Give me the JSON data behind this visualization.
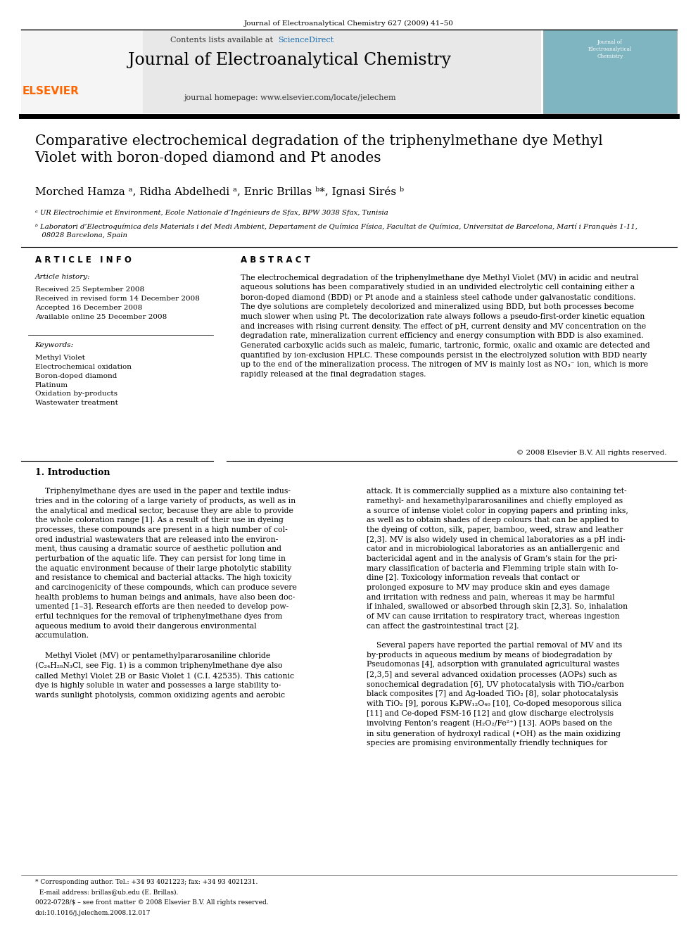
{
  "page_width": 9.92,
  "page_height": 13.23,
  "background": "#ffffff",
  "journal_header": "Journal of Electroanalytical Chemistry 627 (2009) 41–50",
  "sciencedirect_color": "#1a6daf",
  "journal_name": "Journal of Electroanalytical Chemistry",
  "journal_homepage": "journal homepage: www.elsevier.com/locate/jelechem",
  "elsevier_color": "#FF6600",
  "paper_title": "Comparative electrochemical degradation of the triphenylmethane dye Methyl\nViolet with boron-doped diamond and Pt anodes",
  "authors": "Morched Hamza ᵃ, Ridha Abdelhedi ᵃ, Enric Brillas ᵇ*, Ignasi Sirés ᵇ",
  "affil_a": "ᵃ UR Electrochimie et Environment, Ecole Nationale d’Ingénieurs de Sfax, BPW 3038 Sfax, Tunisia",
  "affil_b": "ᵇ Laboratori d’Electroquímica dels Materials i del Medi Ambient, Departament de Química Física, Facultat de Química, Universitat de Barcelona, Martí i Franquès 1-11,\n   08028 Barcelona, Spain",
  "article_info_header": "A R T I C L E   I N F O",
  "article_history_label": "Article history:",
  "article_history": "Received 25 September 2008\nReceived in revised form 14 December 2008\nAccepted 16 December 2008\nAvailable online 25 December 2008",
  "keywords_label": "Keywords:",
  "keywords": "Methyl Violet\nElectrochemical oxidation\nBoron-doped diamond\nPlatinum\nOxidation by-products\nWastewater treatment",
  "abstract_header": "A B S T R A C T",
  "abstract_text": "The electrochemical degradation of the triphenylmethane dye Methyl Violet (MV) in acidic and neutral\naqueous solutions has been comparatively studied in an undivided electrolytic cell containing either a\nboron-doped diamond (BDD) or Pt anode and a stainless steel cathode under galvanostatic conditions.\nThe dye solutions are completely decolorized and mineralized using BDD, but both processes become\nmuch slower when using Pt. The decolorization rate always follows a pseudo-first-order kinetic equation\nand increases with rising current density. The effect of pH, current density and MV concentration on the\ndegradation rate, mineralization current efficiency and energy consumption with BDD is also examined.\nGenerated carboxylic acids such as maleic, fumaric, tartronic, formic, oxalic and oxamic are detected and\nquantified by ion-exclusion HPLC. These compounds persist in the electrolyzed solution with BDD nearly\nup to the end of the mineralization process. The nitrogen of MV is mainly lost as NO₃⁻ ion, which is more\nrapidly released at the final degradation stages.",
  "copyright": "© 2008 Elsevier B.V. All rights reserved.",
  "intro_header": "1. Introduction",
  "intro_col1": "    Triphenylmethane dyes are used in the paper and textile indus-\ntries and in the coloring of a large variety of products, as well as in\nthe analytical and medical sector, because they are able to provide\nthe whole coloration range [1]. As a result of their use in dyeing\nprocesses, these compounds are present in a high number of col-\nored industrial wastewaters that are released into the environ-\nment, thus causing a dramatic source of aesthetic pollution and\nperturbation of the aquatic life. They can persist for long time in\nthe aquatic environment because of their large photolytic stability\nand resistance to chemical and bacterial attacks. The high toxicity\nand carcinogenicity of these compounds, which can produce severe\nhealth problems to human beings and animals, have also been doc-\numented [1–3]. Research efforts are then needed to develop pow-\nerful techniques for the removal of triphenylmethane dyes from\naqueous medium to avoid their dangerous environmental\naccumulation.\n\n    Methyl Violet (MV) or pentamethylpararosaniline chloride\n(C₂₄H₂₈N₃Cl, see Fig. 1) is a common triphenylmethane dye also\ncalled Methyl Violet 2B or Basic Violet 1 (C.I. 42535). This cationic\ndye is highly soluble in water and possesses a large stability to-\nwards sunlight photolysis, common oxidizing agents and aerobic",
  "intro_col2": "attack. It is commercially supplied as a mixture also containing tet-\nramethyl- and hexamethylpararosanilines and chiefly employed as\na source of intense violet color in copying papers and printing inks,\nas well as to obtain shades of deep colours that can be applied to\nthe dyeing of cotton, silk, paper, bamboo, weed, straw and leather\n[2,3]. MV is also widely used in chemical laboratories as a pH indi-\ncator and in microbiological laboratories as an antiallergenic and\nbactericidal agent and in the analysis of Gram’s stain for the pri-\nmary classification of bacteria and Flemming triple stain with Io-\ndine [2]. Toxicology information reveals that contact or\nprolonged exposure to MV may produce skin and eyes damage\nand irritation with redness and pain, whereas it may be harmful\nif inhaled, swallowed or absorbed through skin [2,3]. So, inhalation\nof MV can cause irritation to respiratory tract, whereas ingestion\ncan affect the gastrointestinal tract [2].\n\n    Several papers have reported the partial removal of MV and its\nby-products in aqueous medium by means of biodegradation by\nPseudomonas [4], adsorption with granulated agricultural wastes\n[2,3,5] and several advanced oxidation processes (AOPs) such as\nsonochemical degradation [6], UV photocatalysis with TiO₂/carbon\nblack composites [7] and Ag-loaded TiO₂ [8], solar photocatalysis\nwith TiO₂ [9], porous K₃PW₁₂O₄₀ [10], Co-doped mesoporous silica\n[11] and Ce-doped FSM-16 [12] and glow discharge electrolysis\ninvolving Fenton’s reagent (H₂O₂/Fe²⁺) [13]. AOPs based on the\nin situ generation of hydroxyl radical (•OH) as the main oxidizing\nspecies are promising environmentally friendly techniques for",
  "footnote1": "* Corresponding author. Tel.: +34 93 4021223; fax: +34 93 4021231.",
  "footnote2": "  E-mail address: brillas@ub.edu (E. Brillas).",
  "footnote3": "0022-0728/$ – see front matter © 2008 Elsevier B.V. All rights reserved.",
  "footnote4": "doi:10.1016/j.jelechem.2008.12.017"
}
